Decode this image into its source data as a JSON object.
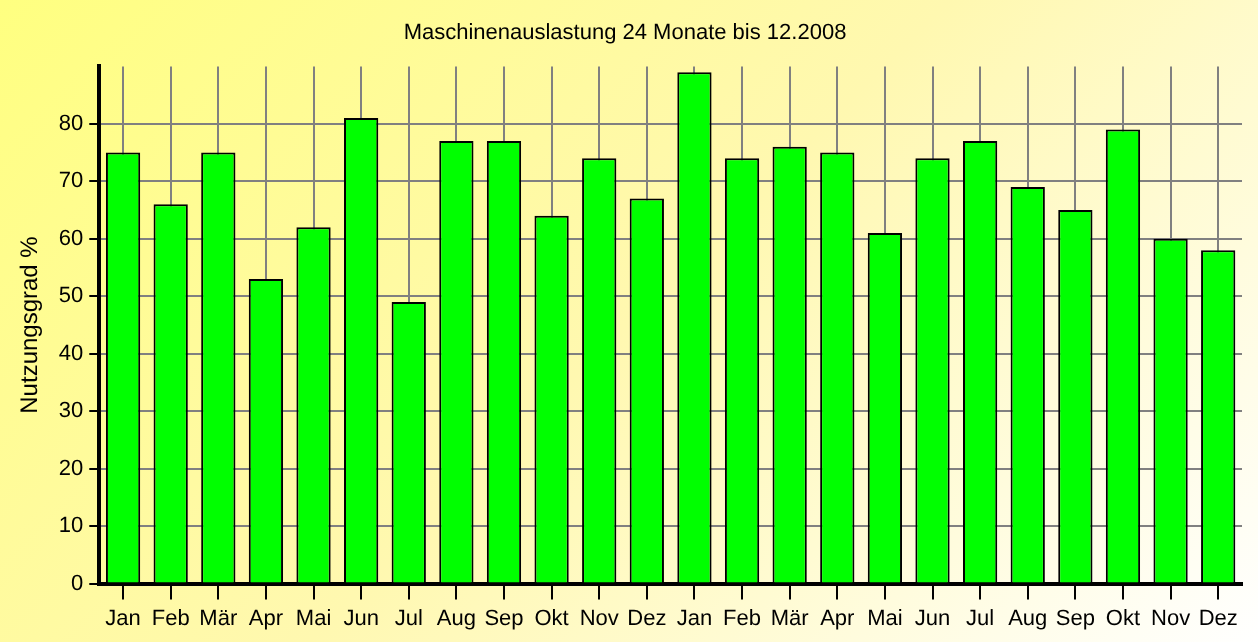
{
  "chart_data": {
    "type": "bar",
    "title": "Maschinenauslastung 24 Monate bis 12.2008",
    "ylabel": "Nutzungsgrad %",
    "categories": [
      "Jan",
      "Feb",
      "Mär",
      "Apr",
      "Mai",
      "Jun",
      "Jul",
      "Aug",
      "Sep",
      "Okt",
      "Nov",
      "Dez",
      "Jan",
      "Feb",
      "Mär",
      "Apr",
      "Mai",
      "Jun",
      "Jul",
      "Aug",
      "Sep",
      "Okt",
      "Nov",
      "Dez"
    ],
    "values": [
      75,
      66,
      75,
      53,
      62,
      81,
      49,
      77,
      77,
      64,
      74,
      67,
      89,
      74,
      76,
      75,
      61,
      74,
      77,
      69,
      65,
      79,
      60,
      58
    ],
    "color": "#00ff00",
    "ylim": [
      0,
      90
    ],
    "yticks": [
      0,
      10,
      20,
      30,
      40,
      50,
      60,
      70,
      80
    ],
    "grid": true,
    "legend": false
  }
}
